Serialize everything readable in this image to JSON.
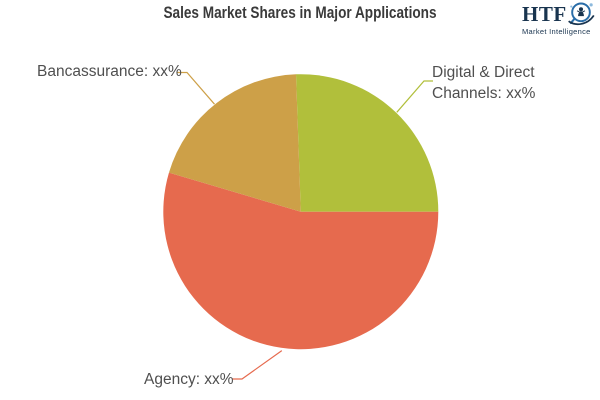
{
  "title": "Sales Market Shares in Major Applications",
  "logo": {
    "text": "HTF",
    "subtext": "Market Intelligence",
    "navy": "#19344f",
    "blue": "#2a6da8",
    "light_blue": "#8db9dd"
  },
  "chart_data": {
    "type": "pie",
    "title": "Sales Market Shares in Major Applications",
    "legend_position": "callout-labels",
    "background": "#ffffff",
    "values_masked": true,
    "slices": [
      {
        "label": "Digital & Direct Channels",
        "display_value": "xx%",
        "percent_est": 25.6,
        "color": "#b1bf3b",
        "start_angle": -2,
        "end_angle": 90
      },
      {
        "label": "Agency",
        "display_value": "xx%",
        "percent_est": 54.6,
        "color": "#e66a4e",
        "start_angle": 90,
        "end_angle": 286.5
      },
      {
        "label": "Bancassurance",
        "display_value": "xx%",
        "percent_est": 19.9,
        "color": "#cda048",
        "start_angle": 286.5,
        "end_angle": 358
      }
    ]
  },
  "callouts": {
    "bancassurance": "Bancassurance: xx%",
    "digital_line1": "Digital & Direct",
    "digital_line2": "Channels: xx%",
    "agency": "Agency: xx%"
  }
}
